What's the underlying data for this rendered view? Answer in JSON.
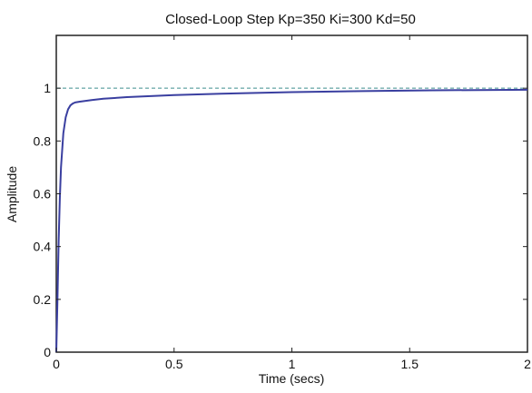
{
  "chart_data": {
    "type": "line",
    "title": "Closed-Loop Step Kp=350 Ki=300 Kd=50",
    "xlabel": "Time (secs)",
    "ylabel": "Amplitude",
    "xlim": [
      0,
      2
    ],
    "ylim": [
      0,
      1.2
    ],
    "x_ticks": [
      "0",
      "0.5",
      "1",
      "1.5",
      "2"
    ],
    "y_ticks": [
      "0",
      "0.2",
      "0.4",
      "0.6",
      "0.8",
      "1"
    ],
    "grid": false,
    "reference_line": {
      "y": 1,
      "style": "dashed",
      "color": "#3f8f8f"
    },
    "series": [
      {
        "color": "#3a3fa0",
        "x": [
          0,
          0.005,
          0.01,
          0.015,
          0.02,
          0.03,
          0.04,
          0.05,
          0.06,
          0.07,
          0.08,
          0.1,
          0.15,
          0.2,
          0.3,
          0.5,
          0.7,
          1.0,
          1.3,
          1.6,
          2.0
        ],
        "y": [
          0,
          0.2,
          0.42,
          0.58,
          0.7,
          0.83,
          0.89,
          0.92,
          0.935,
          0.942,
          0.946,
          0.949,
          0.955,
          0.96,
          0.966,
          0.974,
          0.979,
          0.985,
          0.989,
          0.992,
          0.994
        ]
      }
    ]
  }
}
